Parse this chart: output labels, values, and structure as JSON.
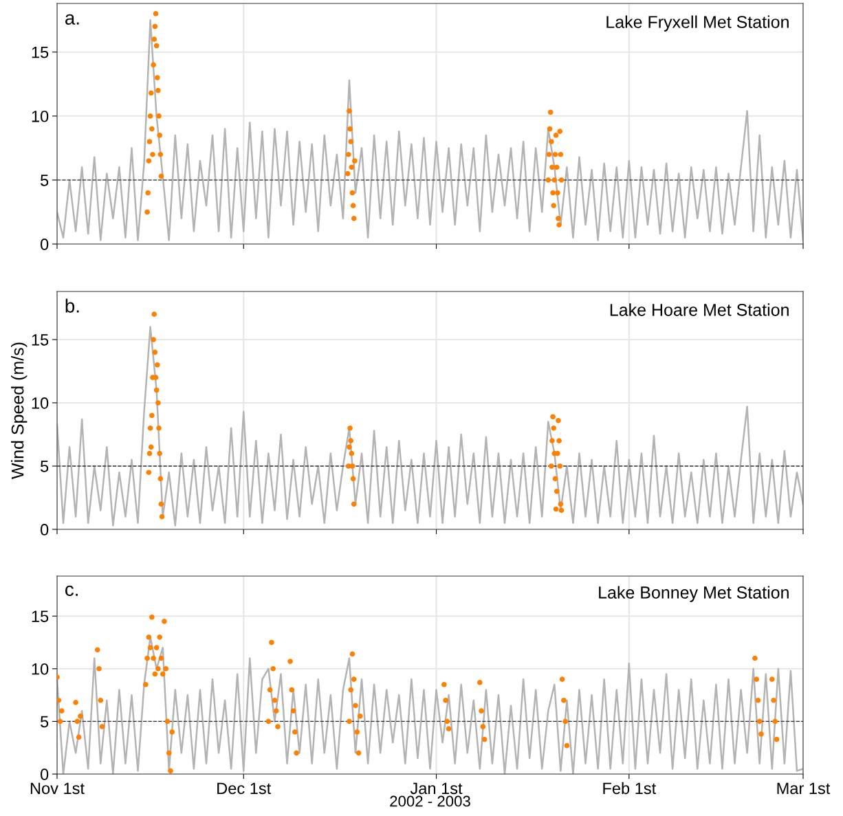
{
  "chart_data": [
    {
      "type": "line",
      "title": "Lake Fryxell Met Station",
      "annotations": [
        "a."
      ],
      "x": [
        "2002-11-01",
        "2002-11-02",
        "2002-11-03",
        "2002-11-04",
        "2002-11-05",
        "2002-11-06",
        "2002-11-07",
        "2002-11-08",
        "2002-11-09",
        "2002-11-10",
        "2002-11-11",
        "2002-11-12",
        "2002-11-13",
        "2002-11-14",
        "2002-11-15",
        "2002-11-16",
        "2002-11-17",
        "2002-11-18",
        "2002-11-19",
        "2002-11-20",
        "2002-11-21",
        "2002-11-22",
        "2002-11-23",
        "2002-11-24",
        "2002-11-25",
        "2002-11-26",
        "2002-11-27",
        "2002-11-28",
        "2002-11-29",
        "2002-11-30",
        "2002-12-01",
        "2002-12-02",
        "2002-12-03",
        "2002-12-04",
        "2002-12-05",
        "2002-12-06",
        "2002-12-07",
        "2002-12-08",
        "2002-12-09",
        "2002-12-10",
        "2002-12-11",
        "2002-12-12",
        "2002-12-13",
        "2002-12-14",
        "2002-12-15",
        "2002-12-16",
        "2002-12-17",
        "2002-12-18",
        "2002-12-19",
        "2002-12-20",
        "2002-12-21",
        "2002-12-22",
        "2002-12-23",
        "2002-12-24",
        "2002-12-25",
        "2002-12-26",
        "2002-12-27",
        "2002-12-28",
        "2002-12-29",
        "2002-12-30",
        "2002-12-31",
        "2003-01-01",
        "2003-01-02",
        "2003-01-03",
        "2003-01-04",
        "2003-01-05",
        "2003-01-06",
        "2003-01-07",
        "2003-01-08",
        "2003-01-09",
        "2003-01-10",
        "2003-01-11",
        "2003-01-12",
        "2003-01-13",
        "2003-01-14",
        "2003-01-15",
        "2003-01-16",
        "2003-01-17",
        "2003-01-18",
        "2003-01-19",
        "2003-01-20",
        "2003-01-21",
        "2003-01-22",
        "2003-01-23",
        "2003-01-24",
        "2003-01-25",
        "2003-01-26",
        "2003-01-27",
        "2003-01-28",
        "2003-01-29",
        "2003-01-30",
        "2003-01-31",
        "2003-02-01",
        "2003-02-02",
        "2003-02-03",
        "2003-02-04",
        "2003-02-05",
        "2003-02-06",
        "2003-02-07",
        "2003-02-08",
        "2003-02-09",
        "2003-02-10",
        "2003-02-11",
        "2003-02-12",
        "2003-02-13",
        "2003-02-14",
        "2003-02-15",
        "2003-02-16",
        "2003-02-17",
        "2003-02-18",
        "2003-02-19",
        "2003-02-20",
        "2003-02-21",
        "2003-02-22",
        "2003-02-23",
        "2003-02-24",
        "2003-02-25",
        "2003-02-26",
        "2003-02-27",
        "2003-02-28",
        "2003-03-01"
      ],
      "xlim": [
        "2002-11-01",
        "2003-03-01"
      ],
      "xticks": [
        {
          "value": "2002-11-01",
          "label": null
        },
        {
          "value": "2002-12-01",
          "label": null
        },
        {
          "value": "2003-01-01",
          "label": null
        },
        {
          "value": "2003-02-01",
          "label": null
        },
        {
          "value": "2003-03-01",
          "label": null
        }
      ],
      "ylim": [
        0,
        18.8
      ],
      "yticks": [
        0,
        5,
        10,
        15
      ],
      "grid": true,
      "tick_labels": "y",
      "ref_lines": [
        {
          "axis": "y",
          "value": 5,
          "color": "#333333",
          "line_style": "dashed"
        }
      ],
      "series": [
        {
          "color": "#b3b3b3",
          "values": [
            2.5,
            0.5,
            5,
            1,
            6,
            0.8,
            6.8,
            0.3,
            5.5,
            2,
            6,
            0.5,
            7.5,
            0.3,
            6.3,
            17.5,
            10,
            5.3,
            0.3,
            8.5,
            2,
            7.8,
            1,
            6.5,
            3,
            8.5,
            1,
            9,
            0.5,
            7.5,
            1,
            9.5,
            2,
            8.8,
            0.5,
            9,
            3,
            8.8,
            1.5,
            8,
            2.5,
            7.8,
            1,
            8.5,
            3,
            7,
            2,
            12.8,
            4,
            7.5,
            0.5,
            8.5,
            2,
            8,
            1.5,
            8.8,
            3,
            7.8,
            2,
            8.3,
            1.5,
            8,
            2.5,
            7.5,
            1.5,
            7.8,
            3,
            7.5,
            1,
            8.5,
            2.5,
            7,
            3,
            7.5,
            2,
            8,
            1,
            7.5,
            2.5,
            9,
            6,
            1.5,
            6,
            0.5,
            6.8,
            1.5,
            5.8,
            0.3,
            6.3,
            1,
            6,
            0.5,
            6.5,
            0.5,
            6,
            1.5,
            5.8,
            0.8,
            6.3,
            1,
            5.5,
            0.5,
            6,
            2,
            5.8,
            1,
            6,
            0.8,
            5.5,
            1.5,
            6,
            10.4,
            1,
            8.5,
            0.5,
            6,
            1.5,
            6.5,
            0.5,
            5.8,
            0.3
          ]
        },
        {
          "type": "scatter",
          "color": "#ff7f00",
          "marker": "circle",
          "x": [
            "2002-11-15T12:00",
            "2002-11-15T15:00",
            "2002-11-15T18:00",
            "2002-11-15T21:00",
            "2002-11-16T00:00",
            "2002-11-16T03:00",
            "2002-11-16T06:00",
            "2002-11-16T09:00",
            "2002-11-16T12:00",
            "2002-11-16T15:00",
            "2002-11-16T18:00",
            "2002-11-16T21:00",
            "2002-11-17T00:00",
            "2002-11-17T03:00",
            "2002-11-17T06:00",
            "2002-11-17T09:00",
            "2002-11-17T12:00",
            "2002-11-17T15:00",
            "2002-11-17T18:00",
            "2002-12-17T18:00",
            "2002-12-17T21:00",
            "2002-12-18T00:00",
            "2002-12-18T03:00",
            "2002-12-18T06:00",
            "2002-12-18T09:00",
            "2002-12-18T12:00",
            "2002-12-18T15:00",
            "2002-12-18T18:00",
            "2002-12-18T21:00",
            "2003-01-19T00:00",
            "2003-01-19T03:00",
            "2003-01-19T06:00",
            "2003-01-19T09:00",
            "2003-01-19T12:00",
            "2003-01-19T15:00",
            "2003-01-19T18:00",
            "2003-01-19T21:00",
            "2003-01-20T00:00",
            "2003-01-20T03:00",
            "2003-01-20T06:00",
            "2003-01-20T09:00",
            "2003-01-20T12:00",
            "2003-01-20T15:00",
            "2003-01-20T18:00",
            "2003-01-20T21:00",
            "2003-01-21T00:00",
            "2003-01-21T03:00"
          ],
          "values": [
            2.5,
            4,
            6.5,
            8,
            10,
            11.8,
            9,
            7,
            14,
            16,
            17,
            18,
            15.5,
            13,
            12,
            10,
            8.5,
            7,
            5.3,
            5.5,
            7,
            10.4,
            9,
            8,
            6,
            4,
            3,
            2,
            6.5,
            5,
            7,
            9,
            10.3,
            8,
            6,
            4,
            3,
            5,
            7,
            8.5,
            6,
            4,
            2,
            1.5,
            8.8,
            7,
            5
          ]
        }
      ]
    },
    {
      "type": "line",
      "title": "Lake Hoare Met Station",
      "annotations": [
        "b."
      ],
      "ylabel": "Wind Speed (m/s)",
      "x": [
        "2002-11-01",
        "2002-11-02",
        "2002-11-03",
        "2002-11-04",
        "2002-11-05",
        "2002-11-06",
        "2002-11-07",
        "2002-11-08",
        "2002-11-09",
        "2002-11-10",
        "2002-11-11",
        "2002-11-12",
        "2002-11-13",
        "2002-11-14",
        "2002-11-15",
        "2002-11-16",
        "2002-11-17",
        "2002-11-18",
        "2002-11-19",
        "2002-11-20",
        "2002-11-21",
        "2002-11-22",
        "2002-11-23",
        "2002-11-24",
        "2002-11-25",
        "2002-11-26",
        "2002-11-27",
        "2002-11-28",
        "2002-11-29",
        "2002-11-30",
        "2002-12-01",
        "2002-12-02",
        "2002-12-03",
        "2002-12-04",
        "2002-12-05",
        "2002-12-06",
        "2002-12-07",
        "2002-12-08",
        "2002-12-09",
        "2002-12-10",
        "2002-12-11",
        "2002-12-12",
        "2002-12-13",
        "2002-12-14",
        "2002-12-15",
        "2002-12-16",
        "2002-12-17",
        "2002-12-18",
        "2002-12-19",
        "2002-12-20",
        "2002-12-21",
        "2002-12-22",
        "2002-12-23",
        "2002-12-24",
        "2002-12-25",
        "2002-12-26",
        "2002-12-27",
        "2002-12-28",
        "2002-12-29",
        "2002-12-30",
        "2002-12-31",
        "2003-01-01",
        "2003-01-02",
        "2003-01-03",
        "2003-01-04",
        "2003-01-05",
        "2003-01-06",
        "2003-01-07",
        "2003-01-08",
        "2003-01-09",
        "2003-01-10",
        "2003-01-11",
        "2003-01-12",
        "2003-01-13",
        "2003-01-14",
        "2003-01-15",
        "2003-01-16",
        "2003-01-17",
        "2003-01-18",
        "2003-01-19",
        "2003-01-20",
        "2003-01-21",
        "2003-01-22",
        "2003-01-23",
        "2003-01-24",
        "2003-01-25",
        "2003-01-26",
        "2003-01-27",
        "2003-01-28",
        "2003-01-29",
        "2003-01-30",
        "2003-01-31",
        "2003-02-01",
        "2003-02-02",
        "2003-02-03",
        "2003-02-04",
        "2003-02-05",
        "2003-02-06",
        "2003-02-07",
        "2003-02-08",
        "2003-02-09",
        "2003-02-10",
        "2003-02-11",
        "2003-02-12",
        "2003-02-13",
        "2003-02-14",
        "2003-02-15",
        "2003-02-16",
        "2003-02-17",
        "2003-02-18",
        "2003-02-19",
        "2003-02-20",
        "2003-02-21",
        "2003-02-22",
        "2003-02-23",
        "2003-02-24",
        "2003-02-25",
        "2003-02-26",
        "2003-02-27",
        "2003-02-28",
        "2003-03-01"
      ],
      "xlim": [
        "2002-11-01",
        "2003-03-01"
      ],
      "xticks": [
        {
          "value": "2002-11-01",
          "label": null
        },
        {
          "value": "2002-12-01",
          "label": null
        },
        {
          "value": "2003-01-01",
          "label": null
        },
        {
          "value": "2003-02-01",
          "label": null
        },
        {
          "value": "2003-03-01",
          "label": null
        }
      ],
      "ylim": [
        0,
        18.8
      ],
      "yticks": [
        0,
        5,
        10,
        15
      ],
      "grid": true,
      "tick_labels": "y",
      "ref_lines": [
        {
          "axis": "y",
          "value": 5,
          "color": "#333333",
          "line_style": "dashed"
        }
      ],
      "series": [
        {
          "color": "#b3b3b3",
          "values": [
            8.3,
            0.5,
            6.5,
            1,
            8.7,
            0.5,
            5,
            1.5,
            6.5,
            0.3,
            4.5,
            1,
            5.5,
            0.5,
            9.3,
            16,
            11,
            1,
            4.5,
            0.3,
            6,
            1,
            5.5,
            0.5,
            6.5,
            1.5,
            5,
            0.5,
            8,
            1,
            9.3,
            1,
            7,
            0.5,
            6,
            1.5,
            7.5,
            0.8,
            5.5,
            1,
            6.5,
            2,
            5,
            0.5,
            6,
            1.5,
            5,
            8,
            2,
            6,
            0.5,
            7.8,
            1,
            6.5,
            0.5,
            7,
            1.5,
            5.5,
            0.5,
            6,
            1,
            7,
            0.5,
            6.5,
            1,
            7.5,
            2,
            6,
            0.5,
            7.3,
            1,
            6,
            0.5,
            5.5,
            1,
            6,
            0.5,
            6.5,
            1,
            8.5,
            6,
            1.5,
            5,
            0.5,
            6,
            1,
            5.5,
            0.5,
            5,
            1,
            7,
            0.5,
            5.5,
            1,
            6,
            0.5,
            7.4,
            1,
            5,
            0.5,
            6,
            1,
            4.5,
            0.5,
            5.5,
            1,
            6,
            0.5,
            5,
            1,
            5.5,
            9.7,
            0.5,
            6,
            1,
            5.5,
            0.5,
            6.2,
            1,
            4.5,
            2
          ]
        },
        {
          "type": "scatter",
          "color": "#ff7f00",
          "marker": "circle",
          "x": [
            "2002-11-15T18:00",
            "2002-11-15T21:00",
            "2002-11-16T00:00",
            "2002-11-16T03:00",
            "2002-11-16T06:00",
            "2002-11-16T09:00",
            "2002-11-16T12:00",
            "2002-11-16T15:00",
            "2002-11-16T18:00",
            "2002-11-16T21:00",
            "2002-11-17T00:00",
            "2002-11-17T03:00",
            "2002-11-17T06:00",
            "2002-11-17T09:00",
            "2002-11-17T12:00",
            "2002-11-17T15:00",
            "2002-11-17T18:00",
            "2002-11-17T21:00",
            "2002-12-17T21:00",
            "2002-12-18T00:00",
            "2002-12-18T03:00",
            "2002-12-18T06:00",
            "2002-12-18T09:00",
            "2002-12-18T12:00",
            "2002-12-18T15:00",
            "2002-12-18T18:00",
            "2003-01-19T12:00",
            "2003-01-19T15:00",
            "2003-01-19T18:00",
            "2003-01-19T21:00",
            "2003-01-20T00:00",
            "2003-01-20T03:00",
            "2003-01-20T06:00",
            "2003-01-20T09:00",
            "2003-01-20T12:00",
            "2003-01-20T15:00",
            "2003-01-20T18:00",
            "2003-01-20T21:00",
            "2003-01-21T00:00",
            "2003-01-21T03:00"
          ],
          "values": [
            4.5,
            6,
            8,
            6.5,
            9,
            12,
            15,
            17,
            14,
            12,
            11,
            13,
            10,
            8,
            6,
            4,
            2,
            1,
            5,
            6.5,
            8,
            7,
            6,
            5,
            4,
            2,
            5,
            7,
            8.9,
            8,
            6,
            4,
            1.6,
            3,
            6,
            8.6,
            7,
            5,
            2,
            1.5
          ]
        }
      ]
    },
    {
      "type": "line",
      "title": "Lake Bonney Met Station",
      "annotations": [
        "c."
      ],
      "xlabel": "2002 - 2003",
      "x": [
        "2002-11-01",
        "2002-11-02",
        "2002-11-03",
        "2002-11-04",
        "2002-11-05",
        "2002-11-06",
        "2002-11-07",
        "2002-11-08",
        "2002-11-09",
        "2002-11-10",
        "2002-11-11",
        "2002-11-12",
        "2002-11-13",
        "2002-11-14",
        "2002-11-15",
        "2002-11-16",
        "2002-11-17",
        "2002-11-18",
        "2002-11-19",
        "2002-11-20",
        "2002-11-21",
        "2002-11-22",
        "2002-11-23",
        "2002-11-24",
        "2002-11-25",
        "2002-11-26",
        "2002-11-27",
        "2002-11-28",
        "2002-11-29",
        "2002-11-30",
        "2002-12-01",
        "2002-12-02",
        "2002-12-03",
        "2002-12-04",
        "2002-12-05",
        "2002-12-06",
        "2002-12-07",
        "2002-12-08",
        "2002-12-09",
        "2002-12-10",
        "2002-12-11",
        "2002-12-12",
        "2002-12-13",
        "2002-12-14",
        "2002-12-15",
        "2002-12-16",
        "2002-12-17",
        "2002-12-18",
        "2002-12-19",
        "2002-12-20",
        "2002-12-21",
        "2002-12-22",
        "2002-12-23",
        "2002-12-24",
        "2002-12-25",
        "2002-12-26",
        "2002-12-27",
        "2002-12-28",
        "2002-12-29",
        "2002-12-30",
        "2002-12-31",
        "2003-01-01",
        "2003-01-02",
        "2003-01-03",
        "2003-01-04",
        "2003-01-05",
        "2003-01-06",
        "2003-01-07",
        "2003-01-08",
        "2003-01-09",
        "2003-01-10",
        "2003-01-11",
        "2003-01-12",
        "2003-01-13",
        "2003-01-14",
        "2003-01-15",
        "2003-01-16",
        "2003-01-17",
        "2003-01-18",
        "2003-01-19",
        "2003-01-20",
        "2003-01-21",
        "2003-01-22",
        "2003-01-23",
        "2003-01-24",
        "2003-01-25",
        "2003-01-26",
        "2003-01-27",
        "2003-01-28",
        "2003-01-29",
        "2003-01-30",
        "2003-01-31",
        "2003-02-01",
        "2003-02-02",
        "2003-02-03",
        "2003-02-04",
        "2003-02-05",
        "2003-02-06",
        "2003-02-07",
        "2003-02-08",
        "2003-02-09",
        "2003-02-10",
        "2003-02-11",
        "2003-02-12",
        "2003-02-13",
        "2003-02-14",
        "2003-02-15",
        "2003-02-16",
        "2003-02-17",
        "2003-02-18",
        "2003-02-19",
        "2003-02-20",
        "2003-02-21",
        "2003-02-22",
        "2003-02-23",
        "2003-02-24",
        "2003-02-25",
        "2003-02-26",
        "2003-02-27",
        "2003-02-28",
        "2003-03-01"
      ],
      "xlim": [
        "2002-11-01",
        "2003-03-01"
      ],
      "xticks": [
        {
          "value": "2002-11-01",
          "label": "Nov 1st"
        },
        {
          "value": "2002-12-01",
          "label": "Dec 1st"
        },
        {
          "value": "2003-01-01",
          "label": "Jan 1st"
        },
        {
          "value": "2003-02-01",
          "label": "Feb 1st"
        },
        {
          "value": "2003-03-01",
          "label": "Mar 1st"
        }
      ],
      "ylim": [
        0,
        18.8
      ],
      "yticks": [
        0,
        5,
        10,
        15
      ],
      "grid": true,
      "ref_lines": [
        {
          "axis": "y",
          "value": 5,
          "color": "#333333",
          "line_style": "dashed"
        }
      ],
      "series": [
        {
          "color": "#b3b3b3",
          "values": [
            9,
            0,
            5,
            2,
            6,
            0.5,
            11,
            1,
            7,
            0,
            8,
            1,
            7.5,
            0.3,
            8.5,
            13,
            10,
            12,
            0.3,
            8,
            2,
            7.5,
            0.5,
            8,
            1,
            9,
            2,
            7,
            0.5,
            9.5,
            0.3,
            11,
            2,
            9,
            10,
            5,
            9.5,
            1,
            8,
            2,
            8.5,
            1,
            9,
            2,
            7.5,
            0.5,
            8,
            11,
            2,
            9,
            1,
            8.5,
            2,
            8,
            3,
            7.5,
            1,
            9,
            1.5,
            8,
            0.5,
            8,
            3,
            7.5,
            1,
            8.5,
            2,
            7,
            0.5,
            8,
            1,
            7.5,
            0,
            6.5,
            0.5,
            9,
            1.5,
            8,
            0.5,
            6,
            8.5,
            0.3,
            7,
            0,
            8,
            1,
            7.5,
            0.5,
            9,
            0.5,
            8,
            1,
            10.5,
            0.5,
            9,
            1,
            8,
            2,
            9.5,
            0.5,
            8,
            1.5,
            9,
            0.5,
            7,
            1,
            8.5,
            0.5,
            9,
            1,
            8,
            2,
            10,
            1,
            9.5,
            0.5,
            10,
            1,
            9.8,
            0.3,
            0.5
          ]
        },
        {
          "type": "scatter",
          "color": "#ff7f00",
          "marker": "circle",
          "x": [
            "2002-11-01T00:00",
            "2002-11-01T06:00",
            "2002-11-01T12:00",
            "2002-11-01T18:00",
            "2002-11-04T00:00",
            "2002-11-04T06:00",
            "2002-11-04T12:00",
            "2002-11-04T18:00",
            "2002-11-07T12:00",
            "2002-11-07T18:00",
            "2002-11-08T00:00",
            "2002-11-08T06:00",
            "2002-11-15T06:00",
            "2002-11-15T12:00",
            "2002-11-15T18:00",
            "2002-11-16T00:00",
            "2002-11-16T06:00",
            "2002-11-16T12:00",
            "2002-11-16T18:00",
            "2002-11-17T00:00",
            "2002-11-17T06:00",
            "2002-11-17T12:00",
            "2002-11-17T18:00",
            "2002-11-18T00:00",
            "2002-11-18T06:00",
            "2002-11-18T12:00",
            "2002-11-18T18:00",
            "2002-11-19T00:00",
            "2002-11-19T06:00",
            "2002-11-19T12:00",
            "2002-12-05T00:00",
            "2002-12-05T06:00",
            "2002-12-05T12:00",
            "2002-12-05T18:00",
            "2002-12-06T00:00",
            "2002-12-06T06:00",
            "2002-12-06T12:00",
            "2002-12-08T12:00",
            "2002-12-08T18:00",
            "2002-12-09T00:00",
            "2002-12-09T06:00",
            "2002-12-09T12:00",
            "2002-12-18T00:00",
            "2002-12-18T06:00",
            "2002-12-18T12:00",
            "2002-12-18T18:00",
            "2002-12-19T00:00",
            "2002-12-19T06:00",
            "2002-12-19T12:00",
            "2002-12-19T18:00",
            "2003-01-02T06:00",
            "2003-01-02T12:00",
            "2003-01-02T18:00",
            "2003-01-03T00:00",
            "2003-01-08T00:00",
            "2003-01-08T06:00",
            "2003-01-08T12:00",
            "2003-01-08T18:00",
            "2003-01-21T06:00",
            "2003-01-21T12:00",
            "2003-01-21T18:00",
            "2003-01-22T00:00",
            "2003-02-21T06:00",
            "2003-02-21T12:00",
            "2003-02-21T18:00",
            "2003-02-22T00:00",
            "2003-02-22T06:00",
            "2003-02-24T00:00",
            "2003-02-24T06:00",
            "2003-02-24T12:00",
            "2003-02-24T18:00"
          ],
          "values": [
            9.2,
            7,
            5,
            6,
            6.8,
            5,
            3.5,
            5.5,
            11.8,
            10,
            7,
            4.5,
            8.5,
            11,
            13,
            12,
            14.9,
            11,
            9.5,
            12,
            10,
            13,
            11,
            9.5,
            14.5,
            10,
            5,
            2,
            0.3,
            4,
            5,
            8,
            12.5,
            10,
            7,
            6,
            4.5,
            10.7,
            8,
            6,
            4,
            2,
            5,
            8,
            11.4,
            9,
            6.5,
            4,
            2,
            5.5,
            8.5,
            7,
            5,
            4.3,
            8.7,
            6,
            4.5,
            3.3,
            9,
            7,
            5,
            2.7,
            11,
            9,
            7,
            5,
            3.8,
            9,
            7,
            5,
            3.3
          ]
        }
      ]
    }
  ]
}
